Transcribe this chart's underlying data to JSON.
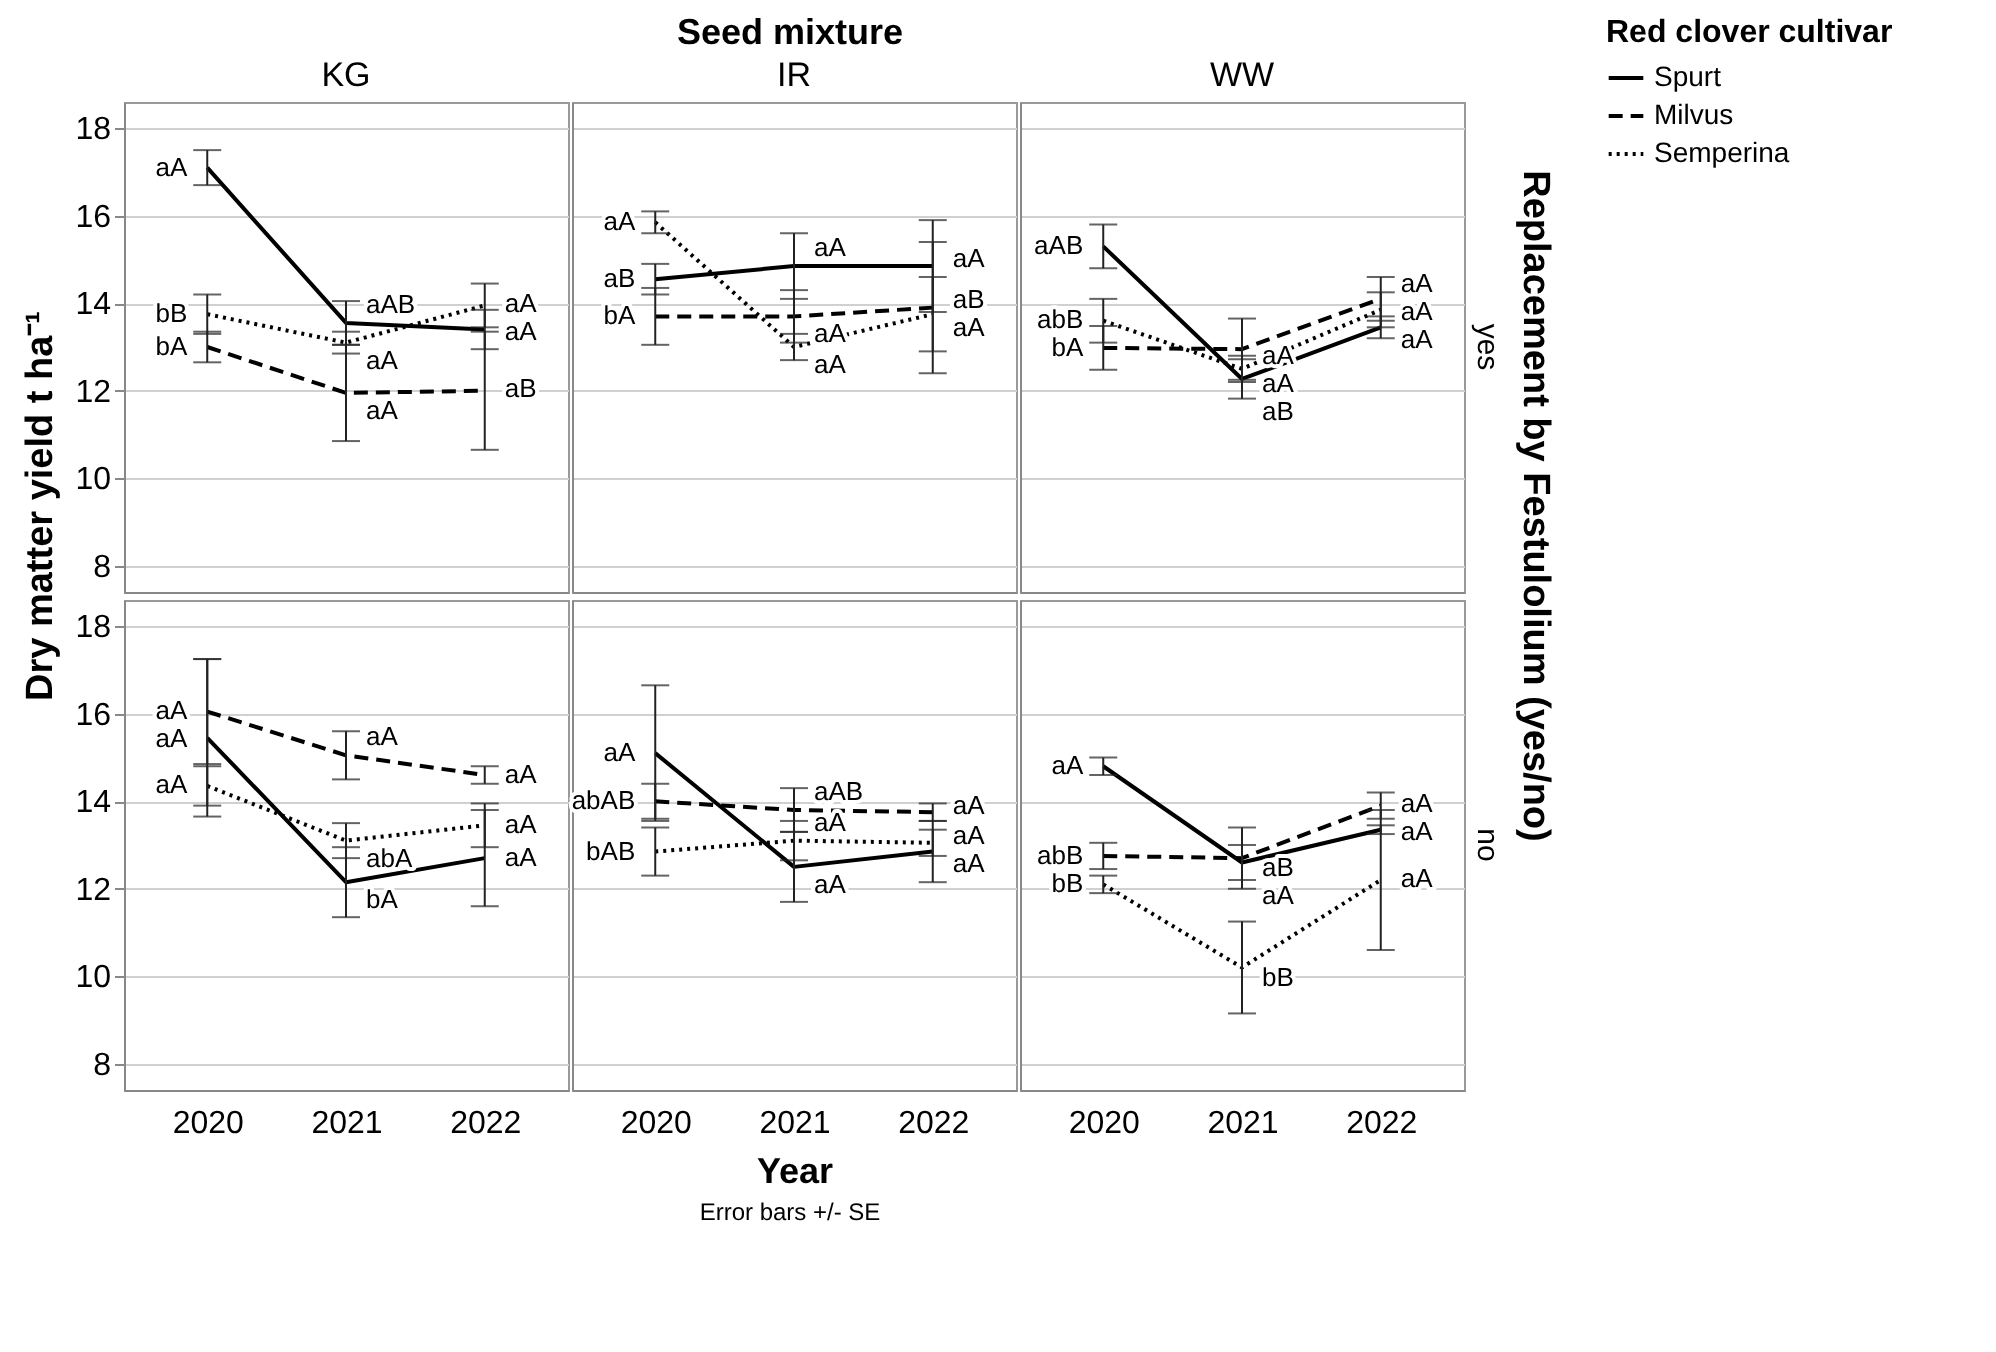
{
  "chart_data": [
    {
      "type": "line",
      "title": "KG",
      "ylabel": "Dry matter yield t ha⁻¹",
      "annotations": [
        "Seed mixture",
        "Replacement by Festulolium (yes/no)",
        "Error bars +/- SE"
      ],
      "categories": [
        "2020",
        "2021",
        "2022"
      ],
      "ylim": [
        7.4,
        18.6
      ],
      "yticks": [
        8,
        10,
        12,
        14,
        16,
        18
      ],
      "grid": "y",
      "tick_labels": "y",
      "legend": false,
      "marker": "none",
      "series": [
        {
          "color": "#000000",
          "line_style": "solid",
          "values": [
            17.1,
            13.55,
            13.4
          ],
          "errors": [
            0.4,
            0.5,
            0.45
          ],
          "value_labels": [
            "aA",
            "aAB",
            "aA"
          ]
        },
        {
          "color": "#000000",
          "line_style": "dashed",
          "values": [
            13.0,
            11.95,
            12.0
          ],
          "errors": [
            0.35,
            1.1,
            1.35
          ],
          "value_labels": [
            "bA",
            "aA",
            "aB"
          ]
        },
        {
          "color": "#000000",
          "line_style": "dotted",
          "values": [
            13.75,
            13.1,
            13.95
          ],
          "errors": [
            0.45,
            0.25,
            0.5
          ],
          "value_labels": [
            "bB",
            "aA",
            "aA"
          ]
        }
      ]
    },
    {
      "type": "line",
      "title": "IR",
      "categories": [
        "2020",
        "2021",
        "2022"
      ],
      "ylim": [
        7.4,
        18.6
      ],
      "yticks": [
        8,
        10,
        12,
        14,
        16,
        18
      ],
      "grid": "y",
      "tick_labels": false,
      "legend": false,
      "marker": "none",
      "series": [
        {
          "color": "#000000",
          "line_style": "solid",
          "values": [
            14.55,
            14.85,
            14.85
          ],
          "errors": [
            0.35,
            0.75,
            1.05
          ],
          "value_labels": [
            "aB",
            "aA",
            "aA"
          ]
        },
        {
          "color": "#000000",
          "line_style": "dashed",
          "values": [
            13.7,
            13.7,
            13.9
          ],
          "errors": [
            0.65,
            0.6,
            1.5
          ],
          "value_labels": [
            "bA",
            "aA",
            "aB"
          ]
        },
        {
          "color": "#000000",
          "line_style": "dotted",
          "values": [
            15.85,
            13.0,
            13.75
          ],
          "errors": [
            0.25,
            0.3,
            0.85
          ],
          "value_labels": [
            "aA",
            "aA",
            "aA"
          ]
        }
      ]
    },
    {
      "type": "line",
      "title": "WW",
      "y2label": "yes",
      "legend_title": "Red clover cultivar",
      "categories": [
        "2020",
        "2021",
        "2022"
      ],
      "ylim": [
        7.4,
        18.6
      ],
      "yticks": [
        8,
        10,
        12,
        14,
        16,
        18
      ],
      "grid": "y",
      "tick_labels": false,
      "legend": "right",
      "marker": "none",
      "series": [
        {
          "name": "Spurt",
          "color": "#000000",
          "line_style": "solid",
          "values": [
            15.3,
            12.27,
            13.45
          ],
          "errors": [
            0.5,
            0.45,
            0.25
          ],
          "value_labels": [
            "aAB",
            "aB",
            "aA"
          ]
        },
        {
          "name": "Milvus",
          "color": "#000000",
          "line_style": "dashed",
          "values": [
            12.98,
            12.95,
            14.1
          ],
          "errors": [
            0.5,
            0.7,
            0.5
          ],
          "value_labels": [
            "bA",
            "aA",
            "aA"
          ]
        },
        {
          "name": "Semperina",
          "color": "#000000",
          "line_style": "dotted",
          "values": [
            13.6,
            12.5,
            13.85
          ],
          "errors": [
            0.5,
            0.3,
            0.4
          ],
          "value_labels": [
            "abB",
            "aA",
            "aA"
          ]
        }
      ]
    },
    {
      "type": "line",
      "categories": [
        "2020",
        "2021",
        "2022"
      ],
      "ylim": [
        7.4,
        18.6
      ],
      "yticks": [
        8,
        10,
        12,
        14,
        16,
        18
      ],
      "grid": "y",
      "legend": false,
      "marker": "none",
      "series": [
        {
          "color": "#000000",
          "line_style": "solid",
          "values": [
            15.45,
            12.15,
            12.7
          ],
          "errors": [
            1.8,
            0.8,
            1.1
          ],
          "value_labels": [
            "aA",
            "bA",
            "aA"
          ]
        },
        {
          "color": "#000000",
          "line_style": "dashed",
          "values": [
            16.05,
            15.05,
            14.6
          ],
          "errors": [
            1.2,
            0.55,
            0.2
          ],
          "value_labels": [
            "aA",
            "aA",
            "aA"
          ]
        },
        {
          "color": "#000000",
          "line_style": "dotted",
          "values": [
            14.35,
            13.1,
            13.45
          ],
          "errors": [
            0.45,
            0.4,
            0.5
          ],
          "value_labels": [
            "aA",
            "abA",
            "aA"
          ]
        }
      ]
    },
    {
      "type": "line",
      "xlabel": "Year",
      "categories": [
        "2020",
        "2021",
        "2022"
      ],
      "ylim": [
        7.4,
        18.6
      ],
      "yticks": [
        8,
        10,
        12,
        14,
        16,
        18
      ],
      "grid": "y",
      "tick_labels": "x",
      "legend": false,
      "marker": "none",
      "series": [
        {
          "color": "#000000",
          "line_style": "solid",
          "values": [
            15.1,
            12.5,
            12.85
          ],
          "errors": [
            1.55,
            0.8,
            0.7
          ],
          "value_labels": [
            "aA",
            "aA",
            "aA"
          ]
        },
        {
          "color": "#000000",
          "line_style": "dashed",
          "values": [
            14.0,
            13.8,
            13.75
          ],
          "errors": [
            0.4,
            0.5,
            0.2
          ],
          "value_labels": [
            "abAB",
            "aAB",
            "aA"
          ]
        },
        {
          "color": "#000000",
          "line_style": "dotted",
          "values": [
            12.85,
            13.1,
            13.05
          ],
          "errors": [
            0.55,
            0.45,
            0.3
          ],
          "value_labels": [
            "bAB",
            "aA",
            "aA"
          ]
        }
      ]
    },
    {
      "type": "line",
      "y2label": "no",
      "categories": [
        "2020",
        "2021",
        "2022"
      ],
      "ylim": [
        7.4,
        18.6
      ],
      "yticks": [
        8,
        10,
        12,
        14,
        16,
        18
      ],
      "grid": "y",
      "tick_labels": "x",
      "legend": false,
      "marker": "none",
      "series": [
        {
          "color": "#000000",
          "line_style": "solid",
          "values": [
            14.8,
            12.6,
            13.35
          ],
          "errors": [
            0.2,
            0.4,
            0.1
          ],
          "value_labels": [
            "aA",
            "aA",
            "aA"
          ]
        },
        {
          "color": "#000000",
          "line_style": "dashed",
          "values": [
            12.75,
            12.7,
            13.9
          ],
          "errors": [
            0.3,
            0.7,
            0.3
          ],
          "value_labels": [
            "abB",
            "aB",
            "aA"
          ]
        },
        {
          "color": "#000000",
          "line_style": "dotted",
          "values": [
            12.1,
            10.2,
            12.2
          ],
          "errors": [
            0.2,
            1.05,
            1.6
          ],
          "value_labels": [
            "bB",
            "bB",
            "aA"
          ]
        }
      ]
    }
  ]
}
